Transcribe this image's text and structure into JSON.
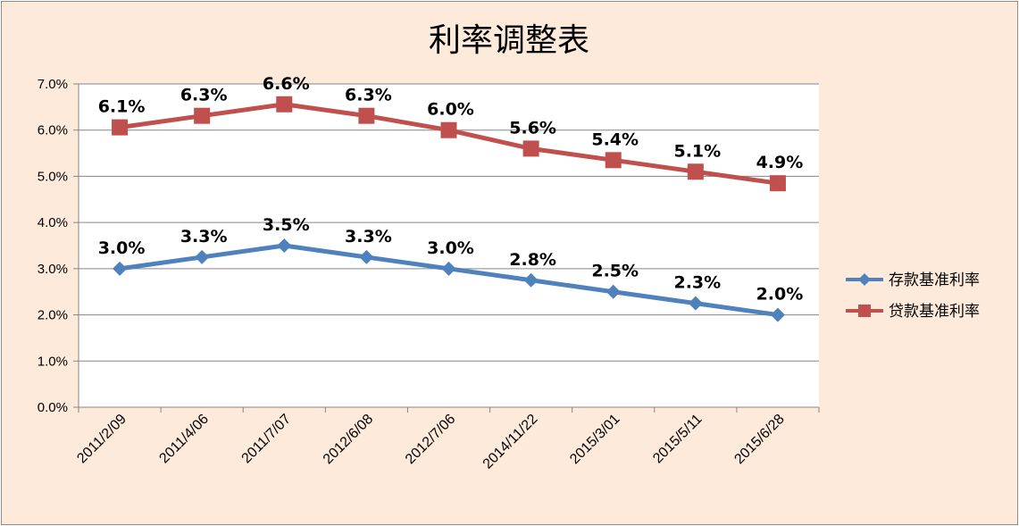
{
  "chart_data": {
    "type": "line",
    "title": "利率调整表",
    "xlabel": "",
    "ylabel": "",
    "categories": [
      "2011/2/09",
      "2011/4/06",
      "2011/7/07",
      "2012/6/08",
      "2012/7/06",
      "2014/11/22",
      "2015/3/01",
      "2015/5/11",
      "2015/6/28"
    ],
    "ylim": [
      0,
      7.0
    ],
    "ytick_values": [
      0,
      1,
      2,
      3,
      4,
      5,
      6,
      7
    ],
    "ytick_labels": [
      "0.0%",
      "1.0%",
      "2.0%",
      "3.0%",
      "4.0%",
      "5.0%",
      "6.0%",
      "7.0%"
    ],
    "grid": true,
    "legend_position": "right",
    "series": [
      {
        "name": "存款基准利率",
        "color": "#4F81BD",
        "marker": "diamond",
        "values": [
          3.0,
          3.25,
          3.5,
          3.25,
          3.0,
          2.75,
          2.5,
          2.25,
          2.0
        ],
        "labels": [
          "3.0%",
          "3.3%",
          "3.5%",
          "3.3%",
          "3.0%",
          "2.8%",
          "2.5%",
          "2.3%",
          "2.0%"
        ]
      },
      {
        "name": "贷款基准利率",
        "color": "#C0504D",
        "marker": "square",
        "values": [
          6.06,
          6.31,
          6.56,
          6.31,
          6.0,
          5.6,
          5.35,
          5.1,
          4.85
        ],
        "labels": [
          "6.1%",
          "6.3%",
          "6.6%",
          "6.3%",
          "6.0%",
          "5.6%",
          "5.4%",
          "5.1%",
          "4.9%"
        ]
      }
    ]
  }
}
